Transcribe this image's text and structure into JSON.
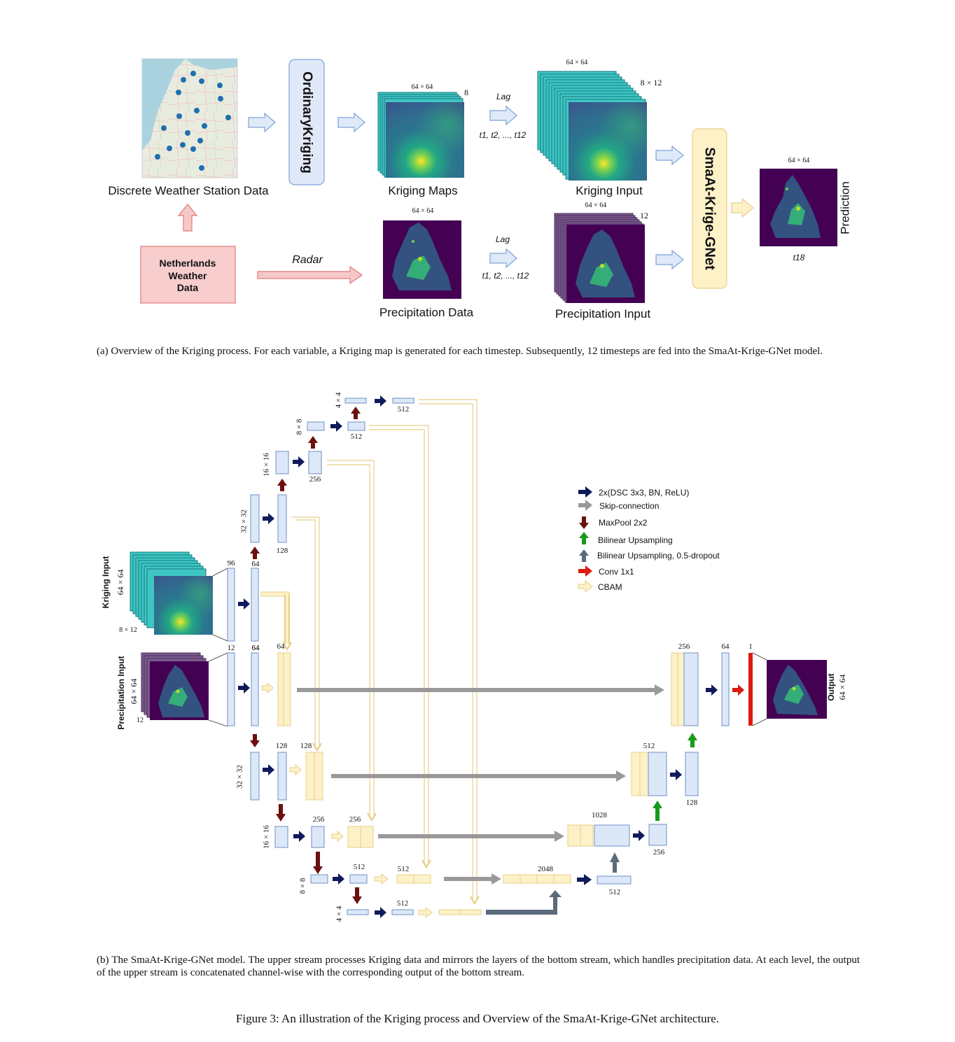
{
  "panel_a": {
    "station_label": "Discrete Weather Station Data",
    "ordinary_kriging": "OrdinaryKriging",
    "kriging_maps": "Kriging Maps",
    "kriging_maps_size": "64 × 64",
    "kriging_maps_depth": "8",
    "lag1": "Lag",
    "lag1_steps": "t1, t2, ..., t12",
    "kriging_input": "Kriging Input",
    "kriging_input_size": "64 × 64",
    "kriging_input_depth": "8 × 12",
    "model": "SmaAt-Krige-GNet",
    "prediction_size": "64 × 64",
    "prediction_label": "Prediction",
    "prediction_time": "t18",
    "nl_data": "Netherlands Weather Data",
    "radar": "Radar",
    "precip_data": "Precipitation Data",
    "precip_data_size": "64 × 64",
    "lag2": "Lag",
    "lag2_steps": "t1, t2, ..., t12",
    "precip_input": "Precipitation Input",
    "precip_input_size": "64 × 64",
    "precip_input_depth": "12",
    "caption": "(a) Overview of the Kriging process. For each variable, a Kriging map is generated for each timestep. Subsequently, 12 timesteps are fed into the SmaAt-Krige-GNet model."
  },
  "panel_b": {
    "kriging_input_title": "Kriging Input",
    "kriging_input_size": "64 × 64",
    "kriging_input_depth": "8 × 12",
    "precip_input_title": "Precipitation Input",
    "precip_input_size": "64 × 64",
    "precip_input_depth": "12",
    "output_title": "Output",
    "output_size": "64 × 64",
    "upper_c1": "96",
    "upper_c2": "64",
    "upper_c3": "64",
    "up32": "32 × 32",
    "up32_ch": "128",
    "up16": "16 × 16",
    "up16_ch": "256",
    "up8": "8 × 8",
    "up8_ch": "512",
    "up4": "4 × 4",
    "up4_ch": "512",
    "lo_c1": "12",
    "lo_c2": "64",
    "lo_cbam": "64",
    "lo32": "32 × 32",
    "lo32_ch1": "128",
    "lo32_ch2": "128",
    "lo16": "16 × 16",
    "lo16_ch1": "256",
    "lo16_ch2": "256",
    "lo8": "8 × 8",
    "lo8_ch1": "512",
    "lo8_ch2": "512",
    "lo4": "4 × 4",
    "lo4_ch": "512",
    "dec_2048": "2048",
    "dec_512": "512",
    "dec_1028": "1028",
    "dec_256": "256",
    "dec_512b": "512",
    "dec_128": "128",
    "dec_256b": "256",
    "dec_64": "64",
    "dec_1": "1",
    "legend": [
      {
        "label": "2x(DSC 3x3, BN, ReLU)",
        "color": "#0f1a5c"
      },
      {
        "label": "Skip-connection",
        "color": "#999999"
      },
      {
        "label": "MaxPool 2x2",
        "color": "#6b1010"
      },
      {
        "label": "Bilinear Upsampling",
        "color": "#1a9a1a"
      },
      {
        "label": "Bilinear Upsampling, 0.5-dropout",
        "color": "#5c6b7a"
      },
      {
        "label": "Conv 1x1",
        "color": "#dd1a10"
      },
      {
        "label": "CBAM",
        "color": "#fbe3b0"
      }
    ],
    "caption": "(b) The SmaAt-Krige-GNet model. The upper stream processes Kriging data and mirrors the layers of the bottom stream, which handles precipitation data. At each level, the output of the upper stream is concatenated channel-wise with the corresponding output of the bottom stream."
  },
  "figure_caption": "Figure 3: An illustration of the Kriging process and Overview of the SmaAt-Krige-GNet architecture."
}
